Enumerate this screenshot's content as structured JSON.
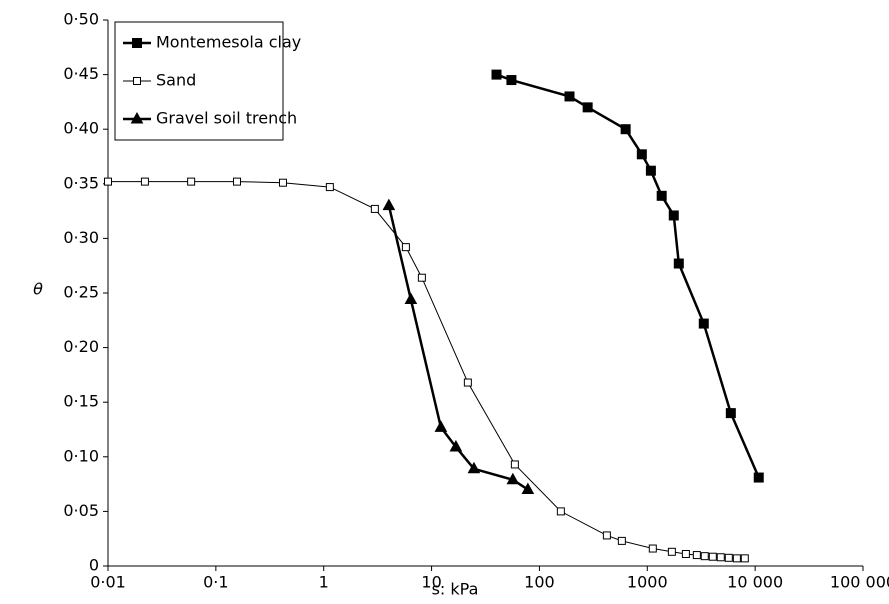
{
  "chart_data": {
    "type": "line",
    "xlabel": "s: kPa",
    "ylabel": "θ",
    "xscale": "log",
    "xlim": [
      0.01,
      100000
    ],
    "ylim": [
      0,
      0.5
    ],
    "xticks": [
      {
        "value": 0.01,
        "label": "0·01"
      },
      {
        "value": 0.1,
        "label": "0·1"
      },
      1,
      10,
      100,
      1000,
      {
        "value": 10000,
        "label": "10 000"
      },
      {
        "value": 100000,
        "label": "100 000"
      }
    ],
    "yticks": [
      0,
      {
        "value": 0.05,
        "label": "0·05"
      },
      {
        "value": 0.1,
        "label": "0·10"
      },
      {
        "value": 0.15,
        "label": "0·15"
      },
      {
        "value": 0.2,
        "label": "0·20"
      },
      {
        "value": 0.25,
        "label": "0·25"
      },
      {
        "value": 0.3,
        "label": "0·30"
      },
      {
        "value": 0.35,
        "label": "0·35"
      },
      {
        "value": 0.4,
        "label": "0·40"
      },
      {
        "value": 0.45,
        "label": "0·45"
      },
      {
        "value": 0.5,
        "label": "0·50"
      }
    ],
    "grid": false,
    "legend": "upper left",
    "series": [
      {
        "name": "Montemesola clay",
        "color": "#000000",
        "marker": "square",
        "filled": true,
        "linewidth": 2.5,
        "x": [
          40,
          55,
          190,
          280,
          630,
          890,
          1080,
          1360,
          1760,
          1960,
          3340,
          5950,
          10800
        ],
        "values": [
          0.45,
          0.445,
          0.43,
          0.42,
          0.4,
          0.377,
          0.362,
          0.339,
          0.321,
          0.277,
          0.222,
          0.14,
          0.081
        ]
      },
      {
        "name": "Sand",
        "color": "#000000",
        "marker": "square",
        "filled": false,
        "linewidth": 1,
        "x": [
          0.01,
          0.022,
          0.059,
          0.157,
          0.419,
          1.14,
          2.98,
          5.78,
          8.13,
          21.7,
          59.2,
          158,
          422,
          581,
          1125,
          1690,
          2280,
          2880,
          3410,
          4050,
          4800,
          5700,
          6770,
          8020
        ],
        "values": [
          0.352,
          0.352,
          0.352,
          0.352,
          0.351,
          0.347,
          0.327,
          0.292,
          0.264,
          0.168,
          0.093,
          0.05,
          0.028,
          0.023,
          0.016,
          0.013,
          0.011,
          0.01,
          0.009,
          0.0085,
          0.008,
          0.0075,
          0.007,
          0.007
        ]
      },
      {
        "name": "Gravel soil trench",
        "color": "#000000",
        "marker": "triangle",
        "filled": true,
        "linewidth": 2.5,
        "x": [
          4.02,
          6.43,
          12.2,
          16.8,
          24.7,
          56.7,
          78.1
        ],
        "values": [
          0.33,
          0.244,
          0.127,
          0.109,
          0.089,
          0.079,
          0.07
        ]
      }
    ]
  }
}
